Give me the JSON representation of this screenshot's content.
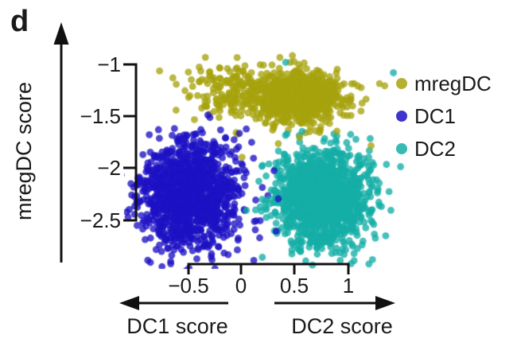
{
  "panel": {
    "label": "d"
  },
  "axes": {
    "y": {
      "label": "mregDC score",
      "tick_labels": [
        "−1",
        "−1.5",
        "−2",
        "−2.5"
      ],
      "tick_values": [
        -1,
        -1.5,
        -2,
        -2.5
      ]
    },
    "x": {
      "tick_labels": [
        "−0.5",
        "0",
        "0.5",
        "1"
      ],
      "tick_values": [
        -0.5,
        0,
        0.5,
        1
      ],
      "left_label": "DC1 score",
      "right_label": "DC2 score"
    }
  },
  "legend": {
    "items": [
      {
        "label": "mregDC",
        "color": "#a7a30e"
      },
      {
        "label": "DC1",
        "color": "#1d12c4"
      },
      {
        "label": "DC2",
        "color": "#14aea6"
      }
    ]
  },
  "chart_data": {
    "type": "scatter",
    "title": "",
    "ylabel": "mregDC score",
    "xlabel_left": "DC1 score",
    "xlabel_right": "DC2 score",
    "xlim": [
      -1.1,
      1.45
    ],
    "ylim": [
      -3.0,
      -0.9
    ],
    "x_ticks": [
      -0.5,
      0,
      0.5,
      1
    ],
    "y_ticks": [
      -1,
      -1.5,
      -2,
      -2.5
    ],
    "grid": false,
    "legend_position": "top-right",
    "point_alpha": 0.78,
    "point_radius_px": 4.4,
    "seed": 20230707,
    "clusters": [
      {
        "name": "mregDC",
        "color": "#a7a30e",
        "parts": [
          {
            "center": [
              0.52,
              -1.31
            ],
            "sd": [
              0.21,
              0.12
            ],
            "n": 900
          },
          {
            "center": [
              -0.1,
              -1.25
            ],
            "sd": [
              0.24,
              0.14
            ],
            "n": 170
          }
        ],
        "strays": [
          [
            0.01,
            -1.89
          ],
          [
            0.35,
            -1.76
          ],
          [
            0.55,
            -1.7
          ],
          [
            1.22,
            -1.78
          ],
          [
            0.9,
            -1.64
          ]
        ]
      },
      {
        "name": "DC1",
        "color": "#1d12c4",
        "parts": [
          {
            "center": [
              -0.49,
              -2.25
            ],
            "sd": [
              0.22,
              0.26
            ],
            "n": 1250
          }
        ],
        "strays": [
          [
            0.18,
            -2.5
          ],
          [
            0.31,
            -2.02
          ],
          [
            0.2,
            -2.18
          ],
          [
            0.35,
            -2.29
          ],
          [
            0.05,
            -1.62
          ],
          [
            0.33,
            -2.6
          ],
          [
            0.12,
            -2.88
          ],
          [
            -0.85,
            -2.9
          ]
        ]
      },
      {
        "name": "DC2",
        "color": "#14aea6",
        "parts": [
          {
            "center": [
              0.76,
              -2.28
            ],
            "sd": [
              0.22,
              0.22
            ],
            "n": 1400
          }
        ],
        "strays": [
          [
            0.42,
            -0.98
          ],
          [
            1.43,
            -1.08
          ],
          [
            0.2,
            -2.85
          ],
          [
            0.05,
            -2.4
          ]
        ]
      }
    ]
  }
}
